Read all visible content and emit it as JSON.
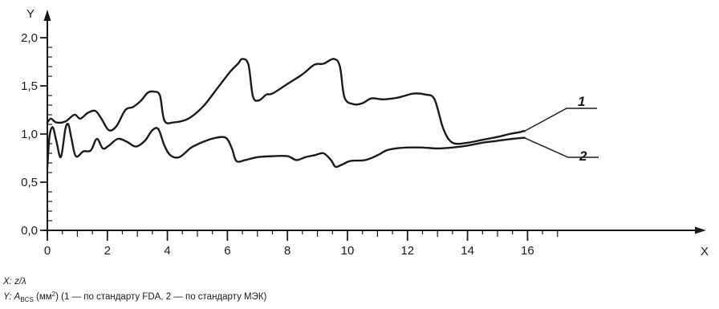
{
  "chart_data": {
    "type": "line",
    "xlabel": "X",
    "ylabel": "Y",
    "xlim": [
      0,
      17
    ],
    "ylim": [
      0,
      2.1
    ],
    "grid": false,
    "x_ticks": [
      {
        "value": 0,
        "label": "0"
      },
      {
        "value": 2,
        "label": "2"
      },
      {
        "value": 4,
        "label": "4"
      },
      {
        "value": 6,
        "label": "6"
      },
      {
        "value": 8,
        "label": "8"
      },
      {
        "value": 10,
        "label": "10"
      },
      {
        "value": 12,
        "label": "12"
      },
      {
        "value": 14,
        "label": "14"
      },
      {
        "value": 16,
        "label": "16"
      }
    ],
    "y_ticks": [
      {
        "value": 0,
        "label": "0,0"
      },
      {
        "value": 0.5,
        "label": "0,5"
      },
      {
        "value": 1.0,
        "label": "1,0"
      },
      {
        "value": 1.5,
        "label": "1,5"
      },
      {
        "value": 2.0,
        "label": "2,0"
      }
    ],
    "series": [
      {
        "name": "1",
        "x": [
          0,
          0.12,
          0.3,
          0.6,
          0.9,
          1.1,
          1.35,
          1.6,
          1.8,
          2.05,
          2.3,
          2.6,
          2.85,
          3.1,
          3.35,
          3.55,
          3.75,
          3.9,
          4.2,
          4.7,
          5.2,
          5.7,
          6.1,
          6.35,
          6.5,
          6.7,
          6.85,
          7.05,
          7.3,
          7.5,
          8.0,
          8.5,
          8.9,
          9.2,
          9.55,
          9.75,
          9.9,
          10.2,
          10.5,
          10.8,
          11.2,
          11.7,
          12.2,
          12.6,
          12.9,
          13.2,
          13.5,
          14.0,
          14.5,
          15.0,
          15.4,
          15.75,
          15.85,
          15.9
        ],
        "values": [
          1.12,
          1.16,
          1.12,
          1.13,
          1.2,
          1.16,
          1.22,
          1.24,
          1.16,
          1.04,
          1.08,
          1.25,
          1.28,
          1.34,
          1.43,
          1.44,
          1.4,
          1.14,
          1.12,
          1.16,
          1.29,
          1.49,
          1.65,
          1.73,
          1.78,
          1.72,
          1.39,
          1.35,
          1.41,
          1.42,
          1.52,
          1.62,
          1.72,
          1.73,
          1.78,
          1.7,
          1.38,
          1.31,
          1.32,
          1.37,
          1.36,
          1.38,
          1.42,
          1.41,
          1.36,
          1.05,
          0.91,
          0.91,
          0.94,
          0.97,
          1.0,
          1.02,
          1.03,
          1.03
        ]
      },
      {
        "name": "2",
        "x": [
          0,
          0.07,
          0.18,
          0.3,
          0.45,
          0.6,
          0.7,
          0.8,
          0.95,
          1.2,
          1.45,
          1.65,
          1.85,
          2.05,
          2.35,
          2.65,
          2.95,
          3.25,
          3.5,
          3.7,
          3.9,
          4.1,
          4.4,
          4.8,
          5.2,
          5.6,
          5.95,
          6.15,
          6.3,
          6.6,
          7.0,
          7.5,
          8.0,
          8.3,
          8.6,
          8.9,
          9.2,
          9.45,
          9.6,
          9.8,
          10.1,
          10.6,
          11.0,
          11.3,
          11.6,
          12.0,
          12.5,
          13.0,
          13.5,
          14.0,
          14.5,
          15.0,
          15.5,
          15.85,
          15.9
        ],
        "values": [
          0.65,
          0.97,
          1.07,
          0.93,
          0.76,
          1.05,
          1.1,
          0.96,
          0.77,
          0.82,
          0.83,
          0.95,
          0.85,
          0.88,
          0.95,
          0.92,
          0.87,
          0.93,
          1.04,
          1.05,
          0.88,
          0.78,
          0.76,
          0.86,
          0.92,
          0.96,
          0.96,
          0.85,
          0.72,
          0.73,
          0.76,
          0.77,
          0.77,
          0.73,
          0.76,
          0.78,
          0.8,
          0.73,
          0.66,
          0.68,
          0.72,
          0.73,
          0.78,
          0.83,
          0.85,
          0.86,
          0.86,
          0.85,
          0.86,
          0.88,
          0.91,
          0.93,
          0.95,
          0.96,
          0.96
        ]
      }
    ]
  },
  "caption": {
    "x_prefix": "X:",
    "x_text": "z/λ",
    "y_prefix": "Y:",
    "y_symbol": "A",
    "y_subscript": "BCS",
    "y_unit_open": "(мм",
    "y_unit_sup": "2",
    "y_unit_close": ")",
    "y_note": "(1 — по стандарту FDA, 2 — по стандарту МЭК)"
  }
}
